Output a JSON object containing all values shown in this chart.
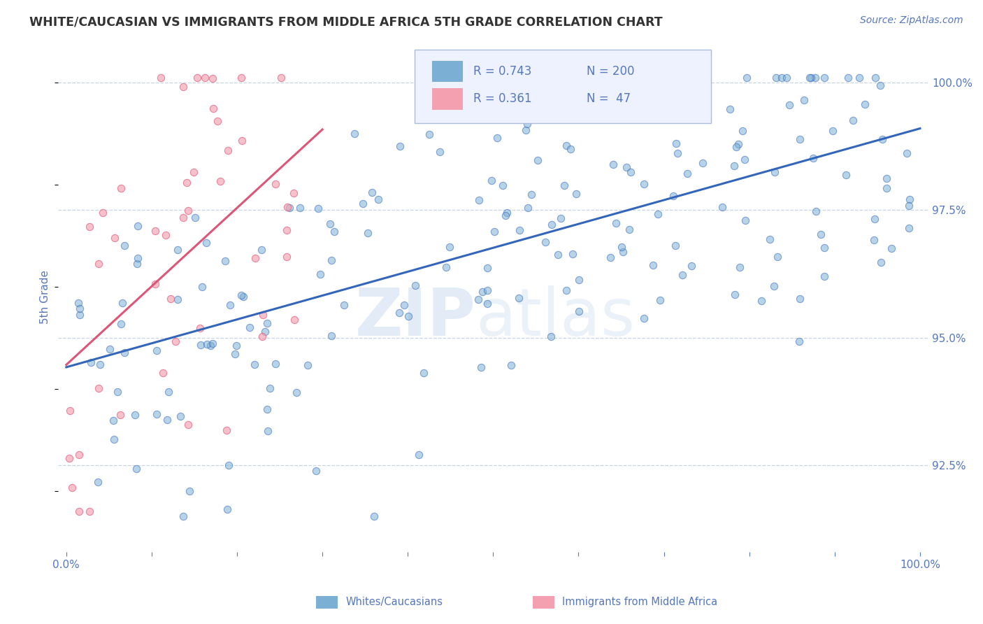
{
  "title": "WHITE/CAUCASIAN VS IMMIGRANTS FROM MIDDLE AFRICA 5TH GRADE CORRELATION CHART",
  "source": "Source: ZipAtlas.com",
  "ylabel": "5th Grade",
  "watermark": "ZIPatlas",
  "blue_R": 0.743,
  "blue_N": 200,
  "pink_R": 0.361,
  "pink_N": 47,
  "blue_color": "#7BAFD4",
  "pink_color": "#F4A0B0",
  "blue_line_color": "#3366BB",
  "pink_line_color": "#DD5577",
  "title_color": "#333333",
  "axis_color": "#5577BB",
  "grid_color": "#BBCCDD",
  "legend_label1": "Whites/Caucasians",
  "legend_label2": "Immigrants from Middle Africa",
  "yticks": [
    0.925,
    0.95,
    0.975,
    1.0
  ],
  "ytick_labels": [
    "92.5%",
    "95.0%",
    "97.5%",
    "100.0%"
  ],
  "xtick_positions": [
    0.0,
    0.1,
    0.2,
    0.3,
    0.4,
    0.5,
    0.6,
    0.7,
    0.8,
    0.9,
    1.0
  ],
  "ylim": [
    0.908,
    1.008
  ],
  "xlim": [
    -0.01,
    1.01
  ]
}
